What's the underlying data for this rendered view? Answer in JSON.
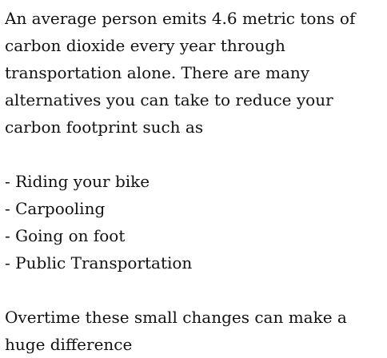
{
  "article": {
    "intro": "An average person emits 4.6 metric tons of carbon dioxide every year through transportation alone. There are many alternatives you can take to reduce your carbon footprint such as",
    "alternatives": [
      "- Riding your bike",
      "- Carpooling",
      "- Going on foot",
      "- Public Transportation"
    ],
    "closing": "Overtime these small changes can make a huge difference"
  }
}
